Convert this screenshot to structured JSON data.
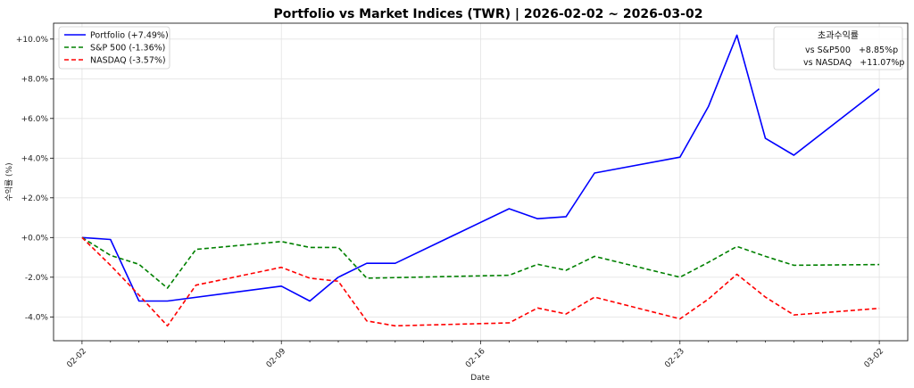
{
  "chart_data": {
    "type": "line",
    "title": "Portfolio vs Market Indices (TWR) | 2026-02-02 ~ 2026-03-02",
    "xlabel": "Date",
    "ylabel": "수익률 (%)",
    "x_ticks": [
      "02-02",
      "02-09",
      "02-16",
      "02-23",
      "03-02"
    ],
    "y_ticks": [
      "-4.0%",
      "-2.0%",
      "+0.0%",
      "+2.0%",
      "+4.0%",
      "+6.0%",
      "+8.0%",
      "+10.0%"
    ],
    "ylim": [
      -5.2,
      10.8
    ],
    "xlim": [
      -1,
      29
    ],
    "grid": true,
    "legend_position": "top-left",
    "series": [
      {
        "name": "Portfolio (+7.49%)",
        "color": "#0000ff",
        "style": "solid",
        "x": [
          0,
          1,
          2,
          3,
          7,
          8,
          9,
          10,
          11,
          15,
          16,
          17,
          18,
          21,
          22,
          23,
          24,
          25,
          28
        ],
        "values": [
          0.0,
          -0.1,
          -3.2,
          -3.2,
          -2.45,
          -3.2,
          -2.0,
          -1.3,
          -1.3,
          1.45,
          0.95,
          1.05,
          3.25,
          4.05,
          6.6,
          10.2,
          5.0,
          4.15,
          7.49
        ]
      },
      {
        "name": "S&P 500 (-1.36%)",
        "color": "#008000",
        "style": "dashed",
        "x": [
          0,
          1,
          2,
          3,
          4,
          7,
          8,
          9,
          10,
          15,
          16,
          17,
          18,
          21,
          22,
          23,
          24,
          25,
          28
        ],
        "values": [
          0.0,
          -0.9,
          -1.35,
          -2.55,
          -0.6,
          -0.2,
          -0.5,
          -0.5,
          -2.05,
          -1.9,
          -1.35,
          -1.65,
          -0.95,
          -2.0,
          -1.25,
          -0.45,
          -0.95,
          -1.4,
          -1.36
        ]
      },
      {
        "name": "NASDAQ (-3.57%)",
        "color": "#ff0000",
        "style": "dashed",
        "x": [
          0,
          1,
          2,
          3,
          4,
          7,
          8,
          9,
          10,
          11,
          15,
          16,
          17,
          18,
          21,
          22,
          23,
          24,
          25,
          28
        ],
        "values": [
          0.0,
          -1.4,
          -2.9,
          -4.45,
          -2.4,
          -1.5,
          -2.05,
          -2.2,
          -4.2,
          -4.45,
          -4.3,
          -3.55,
          -3.85,
          -3.0,
          -4.1,
          -3.1,
          -1.85,
          -3.0,
          -3.9,
          -3.57
        ]
      }
    ],
    "excess_box": {
      "title": "초과수익률",
      "rows": [
        "vs S&P500   +8.85%p",
        "vs NASDAQ   +11.07%p"
      ]
    }
  }
}
